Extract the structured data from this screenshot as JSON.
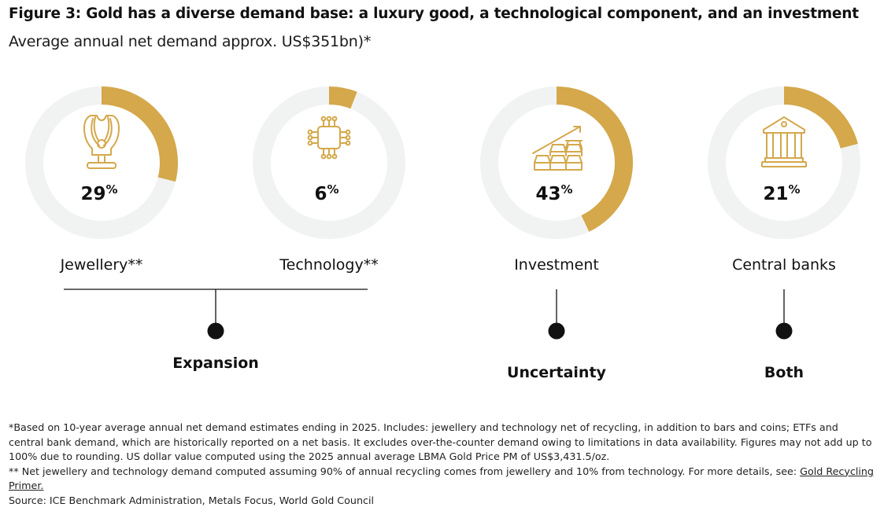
{
  "header": {
    "title": "Figure 3: Gold has a diverse demand base: a luxury good, a technological component, and an investment",
    "subtitle": "Average annual net demand approx. US$351bn)*"
  },
  "colors": {
    "accent": "#d4a84b",
    "track": "#f1f2f2",
    "text": "#111111",
    "connector": "#111111"
  },
  "chart_data": {
    "type": "pie",
    "variant": "donut-small-multiples",
    "title": "Figure 3: Gold has a diverse demand base: a luxury good, a technological component, and an investment",
    "subtitle": "Average annual net demand approx. US$351bn)*",
    "unit": "%",
    "categories": [
      "Jewellery**",
      "Technology**",
      "Investment",
      "Central banks"
    ],
    "values": [
      29,
      6,
      43,
      21
    ],
    "icons": [
      "necklace-icon",
      "microchip-icon",
      "gold-bars-icon",
      "bank-icon"
    ],
    "groups": [
      {
        "label": "Expansion",
        "members": [
          "Jewellery**",
          "Technology**"
        ]
      },
      {
        "label": "Uncertainty",
        "members": [
          "Investment"
        ]
      },
      {
        "label": "Both",
        "members": [
          "Central banks"
        ]
      }
    ]
  },
  "footnotes": {
    "note1": "*Based on 10-year average annual net demand estimates ending in 2025. Includes: jewellery and technology net of recycling, in addition to bars and coins; ETFs and central bank demand, which are historically reported on a net basis. It excludes over-the-counter demand owing to limitations in data availability. Figures may not add up to 100% due to rounding. US dollar value computed using the 2025 annual average LBMA Gold Price PM of US$3,431.5/oz.",
    "note2_text": "** Net jewellery and technology demand computed assuming 90% of annual recycling comes from jewellery and 10% from technology. For more details, see: ",
    "note2_link": "Gold Recycling Primer.",
    "source": "Source: ICE Benchmark Administration, Metals Focus, World Gold Council"
  }
}
